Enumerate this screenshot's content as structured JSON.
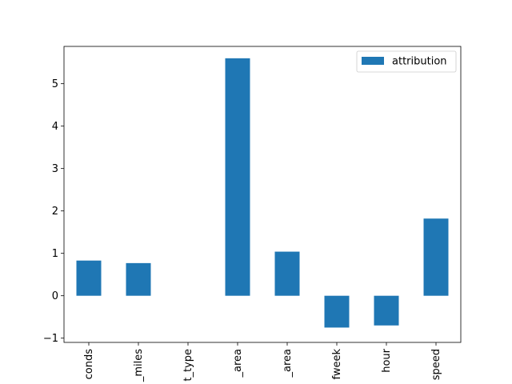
{
  "chart_data": {
    "type": "bar",
    "categories": [
      "conds",
      "_miles",
      "t_type",
      "_area",
      "_area",
      "fweek",
      "hour",
      "speed"
    ],
    "series": [
      {
        "name": "attribution",
        "values": [
          0.83,
          0.77,
          0.0,
          5.6,
          1.04,
          -0.75,
          -0.7,
          1.82
        ]
      }
    ],
    "ylim": [
      -1.1,
      5.88
    ],
    "yticks": [
      -1,
      0,
      1,
      2,
      3,
      4,
      5
    ],
    "legend": "top-right",
    "grid": false,
    "colors": {
      "bar": "#1f77b4"
    }
  }
}
